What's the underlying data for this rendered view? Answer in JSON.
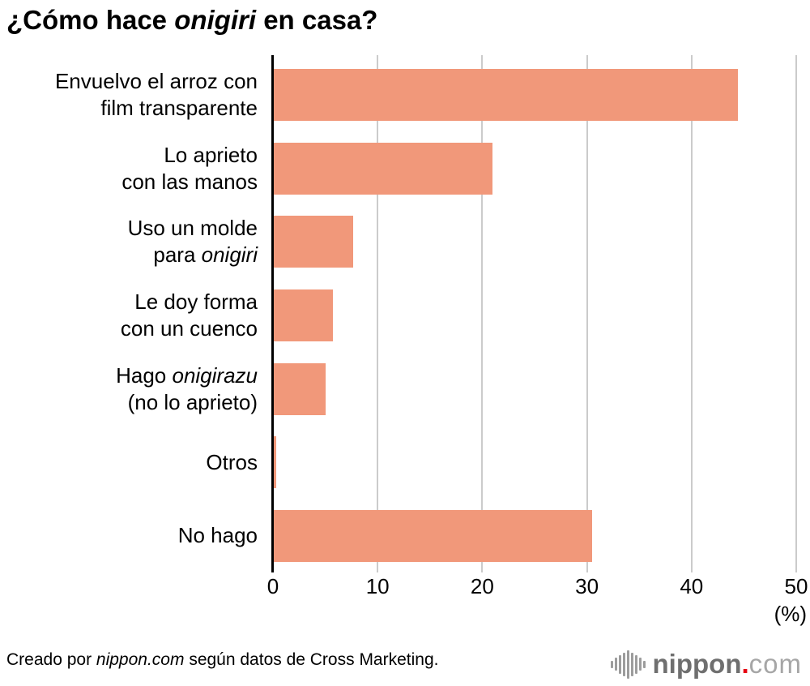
{
  "title": {
    "segments": [
      {
        "t": "¿Cómo hace "
      },
      {
        "t": "onigiri",
        "i": true
      },
      {
        "t": " en casa?"
      }
    ]
  },
  "chart_data": {
    "type": "bar",
    "orientation": "horizontal",
    "title": "¿Cómo hace onigiri en casa?",
    "xlabel": "(%)",
    "ylabel": "",
    "xlim": [
      0,
      50
    ],
    "x_ticks": [
      0,
      10,
      20,
      30,
      40,
      50
    ],
    "x_unit_label": "(%)",
    "grid": true,
    "bar_color": "#F1987A",
    "axis_color": "#000000",
    "gridline_color": "#CBCBCB",
    "categories": [
      {
        "value": 44.4,
        "label_lines": [
          [
            {
              "t": "Envuelvo el arroz con"
            }
          ],
          [
            {
              "t": "film transparente"
            }
          ]
        ]
      },
      {
        "value": 21.0,
        "label_lines": [
          [
            {
              "t": "Lo aprieto"
            }
          ],
          [
            {
              "t": "con las manos"
            }
          ]
        ]
      },
      {
        "value": 7.7,
        "label_lines": [
          [
            {
              "t": "Uso un molde"
            }
          ],
          [
            {
              "t": "para "
            },
            {
              "t": "onigiri",
              "i": true
            }
          ]
        ]
      },
      {
        "value": 5.7,
        "label_lines": [
          [
            {
              "t": "Le doy forma"
            }
          ],
          [
            {
              "t": "con un cuenco"
            }
          ]
        ]
      },
      {
        "value": 5.0,
        "label_lines": [
          [
            {
              "t": "Hago "
            },
            {
              "t": "onigirazu",
              "i": true
            }
          ],
          [
            {
              "t": "(no lo aprieto)"
            }
          ]
        ]
      },
      {
        "value": 0.3,
        "label_lines": [
          [
            {
              "t": "Otros"
            }
          ]
        ]
      },
      {
        "value": 30.5,
        "label_lines": [
          [
            {
              "t": "No hago"
            }
          ]
        ]
      }
    ]
  },
  "footer": {
    "credit_segments": [
      {
        "t": "Creado por "
      },
      {
        "t": "nippon.com",
        "i": true
      },
      {
        "t": " según datos de Cross Marketing."
      }
    ],
    "logo": {
      "name": "nippon",
      "dot": ".",
      "tld": "com",
      "text_color": "#6F6F6F",
      "dot_color": "#E60012",
      "tld_color": "#A6A6A6",
      "mark_color": "#9C9C9C",
      "mark_bar_heights": [
        9,
        16,
        23,
        29,
        35,
        29,
        23,
        16,
        9
      ]
    }
  }
}
